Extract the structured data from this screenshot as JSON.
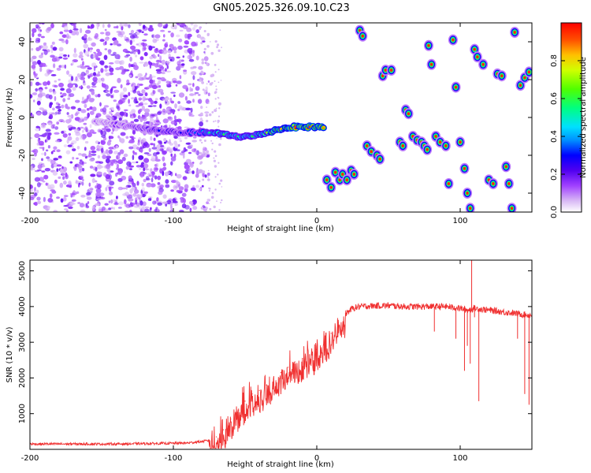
{
  "title": "GN05.2025.326.09.10.C23",
  "chart_data": [
    {
      "type": "heatmap",
      "title": "GN05.2025.326.09.10.C23",
      "xlabel": "Height of straight line (km)",
      "ylabel": "Frequency (Hz)",
      "xlim": [
        -200,
        150
      ],
      "ylim": [
        -50,
        50
      ],
      "xticks": [
        -200,
        -100,
        0,
        100
      ],
      "yticks": [
        -40,
        -20,
        0,
        20,
        40
      ],
      "colorbar": {
        "label": "Normalized spectral amplitude",
        "range": [
          0.0,
          1.0
        ],
        "ticks": [
          0.0,
          0.2,
          0.4,
          0.6,
          0.8
        ],
        "tick_labels": [
          "0.0",
          "0.2",
          "0.4",
          "0.6",
          "0.8"
        ],
        "colormap": "rainbow (white-purple-blue-cyan-green-yellow-orange-red)"
      },
      "noise_region": {
        "x_range": [
          -200,
          -75
        ],
        "freq_range": [
          -50,
          50
        ],
        "typical_amplitude": 0.1
      },
      "ridge": [
        {
          "x": -155,
          "f": -2,
          "a": 0.12
        },
        {
          "x": -110,
          "f": -7,
          "a": 0.3
        },
        {
          "x": -95,
          "f": -8,
          "a": 0.28
        },
        {
          "x": -85,
          "f": -8,
          "a": 0.35
        },
        {
          "x": -75,
          "f": -8,
          "a": 0.55
        },
        {
          "x": -65,
          "f": -9,
          "a": 0.6
        },
        {
          "x": -55,
          "f": -10,
          "a": 0.55
        },
        {
          "x": -45,
          "f": -10,
          "a": 0.6
        },
        {
          "x": -35,
          "f": -8,
          "a": 0.7
        },
        {
          "x": -25,
          "f": -6,
          "a": 0.85
        },
        {
          "x": -15,
          "f": -5,
          "a": 0.95
        },
        {
          "x": -5,
          "f": -5,
          "a": 0.95
        },
        {
          "x": 5,
          "f": -5,
          "a": 0.85
        }
      ],
      "blobs": [
        {
          "x": 7,
          "f": -33
        },
        {
          "x": 10,
          "f": -37
        },
        {
          "x": 13,
          "f": -29
        },
        {
          "x": 16,
          "f": -33
        },
        {
          "x": 18,
          "f": -30
        },
        {
          "x": 21,
          "f": -33
        },
        {
          "x": 24,
          "f": -28
        },
        {
          "x": 26,
          "f": -30
        },
        {
          "x": 30,
          "f": 46
        },
        {
          "x": 32,
          "f": 43
        },
        {
          "x": 35,
          "f": -15
        },
        {
          "x": 38,
          "f": -18
        },
        {
          "x": 42,
          "f": -20
        },
        {
          "x": 44,
          "f": -22
        },
        {
          "x": 46,
          "f": 22
        },
        {
          "x": 48,
          "f": 25
        },
        {
          "x": 52,
          "f": 25
        },
        {
          "x": 58,
          "f": -13
        },
        {
          "x": 60,
          "f": -15
        },
        {
          "x": 62,
          "f": 4
        },
        {
          "x": 64,
          "f": 2
        },
        {
          "x": 67,
          "f": -10
        },
        {
          "x": 70,
          "f": -12
        },
        {
          "x": 73,
          "f": -13
        },
        {
          "x": 75,
          "f": -15
        },
        {
          "x": 77,
          "f": -17
        },
        {
          "x": 78,
          "f": 38
        },
        {
          "x": 80,
          "f": 28
        },
        {
          "x": 83,
          "f": -10
        },
        {
          "x": 86,
          "f": -13
        },
        {
          "x": 90,
          "f": -15
        },
        {
          "x": 92,
          "f": -35
        },
        {
          "x": 95,
          "f": 41
        },
        {
          "x": 97,
          "f": 16
        },
        {
          "x": 100,
          "f": -13
        },
        {
          "x": 103,
          "f": -27
        },
        {
          "x": 105,
          "f": -40
        },
        {
          "x": 107,
          "f": -48
        },
        {
          "x": 110,
          "f": 36
        },
        {
          "x": 112,
          "f": 32
        },
        {
          "x": 116,
          "f": 28
        },
        {
          "x": 120,
          "f": -33
        },
        {
          "x": 123,
          "f": -35
        },
        {
          "x": 126,
          "f": 23
        },
        {
          "x": 129,
          "f": 22
        },
        {
          "x": 132,
          "f": -26
        },
        {
          "x": 134,
          "f": -35
        },
        {
          "x": 136,
          "f": -48
        },
        {
          "x": 138,
          "f": 45
        },
        {
          "x": 142,
          "f": 17
        },
        {
          "x": 145,
          "f": 21
        },
        {
          "x": 148,
          "f": 24
        }
      ]
    },
    {
      "type": "line",
      "xlabel": "Height of straight line (km)",
      "ylabel": "SNR (10 * v/v)",
      "xlim": [
        -200,
        150
      ],
      "ylim": [
        0,
        5300
      ],
      "xticks": [
        -200,
        -100,
        0,
        100
      ],
      "yticks": [
        1000,
        2000,
        3000,
        4000,
        5000
      ],
      "color": "#f03030",
      "series": [
        {
          "name": "SNR",
          "x": [
            -200,
            -180,
            -160,
            -140,
            -120,
            -100,
            -90,
            -80,
            -75,
            -70,
            -65,
            -60,
            -55,
            -50,
            -45,
            -40,
            -35,
            -30,
            -25,
            -20,
            -15,
            -10,
            -5,
            0,
            5,
            10,
            15,
            20,
            25,
            30,
            40,
            50,
            60,
            70,
            80,
            90,
            100,
            105,
            110,
            120,
            130,
            140,
            150
          ],
          "y": [
            150,
            150,
            150,
            150,
            160,
            170,
            180,
            220,
            250,
            350,
            550,
            850,
            1100,
            1350,
            1550,
            1650,
            1800,
            2000,
            2150,
            2300,
            2450,
            2550,
            2650,
            2800,
            3000,
            3250,
            3550,
            3800,
            3950,
            4000,
            4020,
            4030,
            4000,
            4000,
            4000,
            4000,
            3950,
            3900,
            3950,
            3900,
            3850,
            3800,
            3750
          ]
        }
      ],
      "spikes": [
        {
          "x": 82,
          "y": 3300
        },
        {
          "x": 97,
          "y": 3100
        },
        {
          "x": 103,
          "y": 2200
        },
        {
          "x": 105,
          "y": 2900
        },
        {
          "x": 107,
          "y": 2400
        },
        {
          "x": 108,
          "y": 5300
        },
        {
          "x": 110,
          "y": 3700
        },
        {
          "x": 113,
          "y": 1350
        },
        {
          "x": 140,
          "y": 3100
        },
        {
          "x": 145,
          "y": 1550
        },
        {
          "x": 148,
          "y": 1250
        },
        {
          "x": 150,
          "y": 3600
        }
      ]
    }
  ]
}
